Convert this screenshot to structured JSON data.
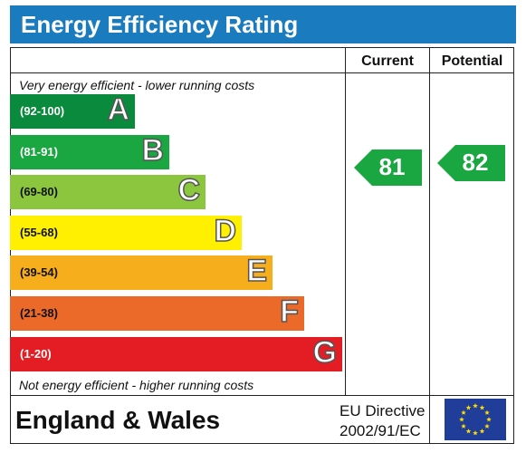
{
  "title": "Energy Efficiency Rating",
  "columns": {
    "current": "Current",
    "potential": "Potential"
  },
  "notes": {
    "top": "Very energy efficient - lower running costs",
    "bottom": "Not energy efficient - higher running costs"
  },
  "chart_data": {
    "type": "bar",
    "categories": [
      "A",
      "B",
      "C",
      "D",
      "E",
      "F",
      "G"
    ],
    "ranges": [
      "(92-100)",
      "(81-91)",
      "(69-80)",
      "(55-68)",
      "(39-54)",
      "(21-38)",
      "(1-20)"
    ],
    "colors": [
      "#0a8a3c",
      "#1aa640",
      "#8cc63e",
      "#ffef00",
      "#f7ae1c",
      "#ec6a29",
      "#e31d23"
    ],
    "range_text_colors": [
      "#ffffff",
      "#ffffff",
      "#111111",
      "#111111",
      "#111111",
      "#111111",
      "#ffffff"
    ],
    "ratings": {
      "current": 81,
      "potential": 82
    },
    "rating_color": "#1aa640"
  },
  "footer": {
    "region": "England & Wales",
    "directive_line1": "EU Directive",
    "directive_line2": "2002/91/EC",
    "flag_colors": {
      "field": "#1f3d99",
      "stars": "#ffdd00"
    }
  }
}
